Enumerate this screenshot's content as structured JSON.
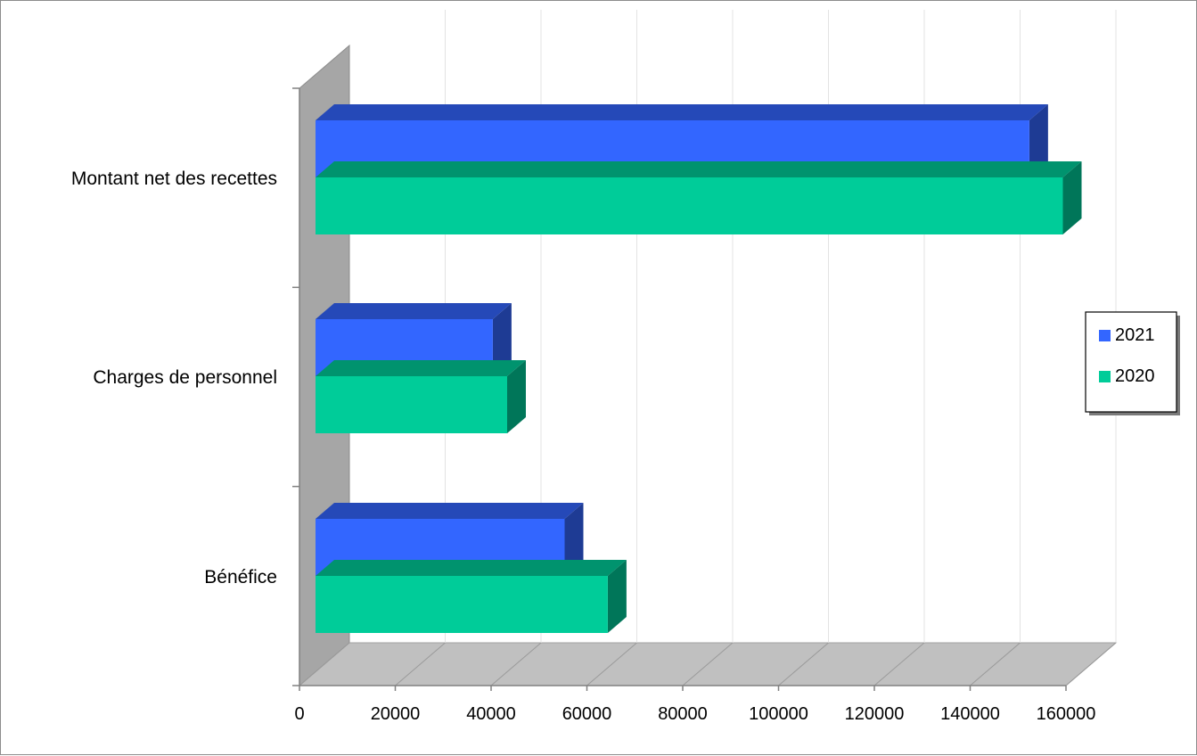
{
  "chart_data": {
    "type": "bar",
    "orientation": "horizontal",
    "style": "3d-clustered",
    "categories": [
      "Montant net des recettes",
      "Charges de personnel",
      "Bénéfice"
    ],
    "series": [
      {
        "name": "2021",
        "values": [
          149000,
          37000,
          52000
        ],
        "color": "#3366ff"
      },
      {
        "name": "2020",
        "values": [
          156000,
          40000,
          61000
        ],
        "color": "#00cc99"
      }
    ],
    "xlim": [
      0,
      160000
    ],
    "xticks": [
      "0",
      "20000",
      "40000",
      "60000",
      "80000",
      "100000",
      "120000",
      "140000",
      "160000"
    ],
    "title": "",
    "xlabel": "",
    "ylabel": "",
    "grid": true,
    "legend_position": "right"
  }
}
